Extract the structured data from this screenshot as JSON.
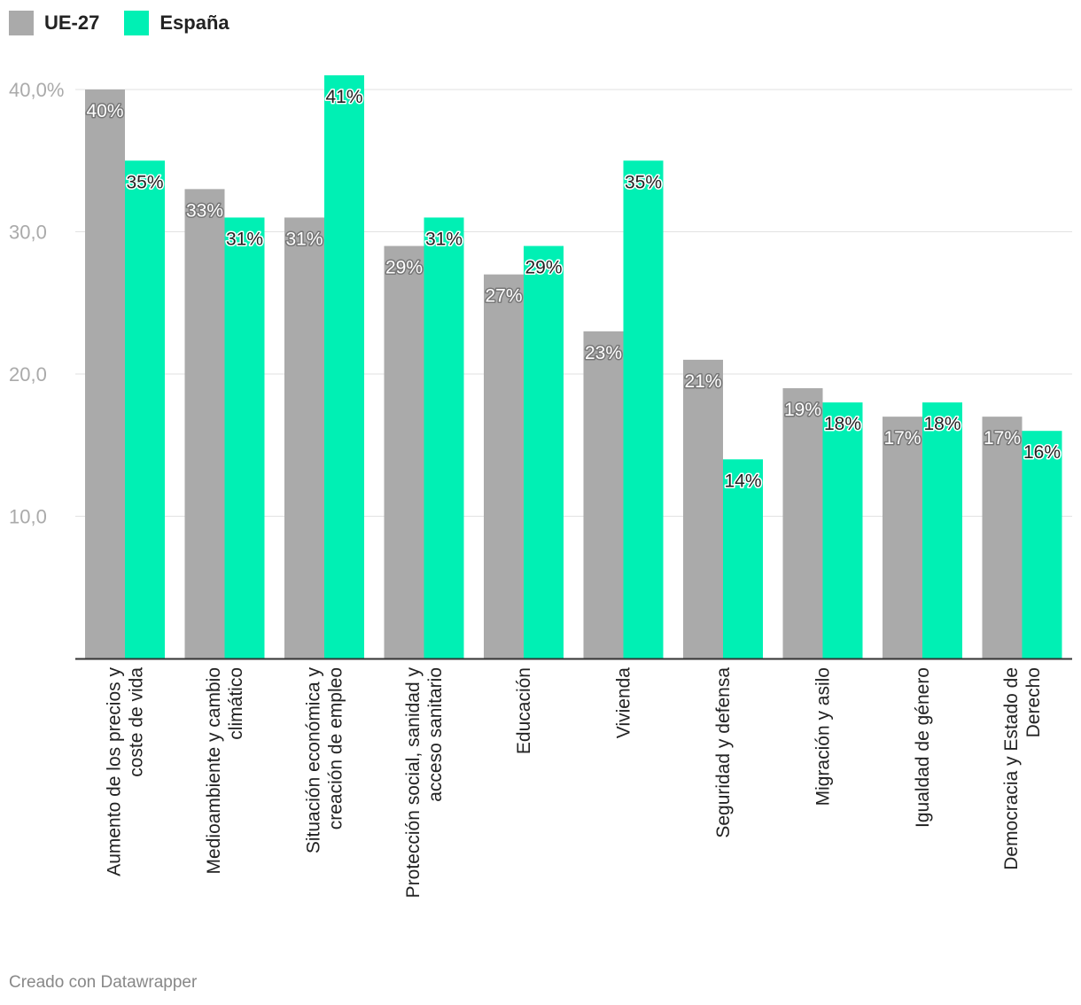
{
  "legend": [
    {
      "label": "UE-27",
      "color": "#aaaaaa"
    },
    {
      "label": "España",
      "color": "#00f0b4"
    }
  ],
  "chart_data": {
    "type": "bar",
    "title": "",
    "xlabel": "",
    "ylabel": "",
    "ylim": [
      0,
      40
    ],
    "yticks": [
      {
        "value": 10,
        "label": "10,0"
      },
      {
        "value": 20,
        "label": "20,0"
      },
      {
        "value": 30,
        "label": "30,0"
      },
      {
        "value": 40,
        "label": "40,0%"
      }
    ],
    "categories": [
      [
        "Aumento de los precios y",
        "coste de vida"
      ],
      [
        "Medioambiente y cambio",
        "climático"
      ],
      [
        "Situación económica y",
        "creación de empleo"
      ],
      [
        "Protección social, sanidad y",
        "acceso sanitario"
      ],
      [
        "Educación"
      ],
      [
        "Vivienda"
      ],
      [
        "Seguridad y defensa"
      ],
      [
        "Migración y asilo"
      ],
      [
        "Igualdad de género"
      ],
      [
        "Democracia y Estado de",
        "Derecho"
      ]
    ],
    "series": [
      {
        "name": "UE-27",
        "color": "#aaaaaa",
        "label_color": "#ffffff",
        "label_stroke": "#777777",
        "values": [
          40,
          33,
          31,
          29,
          27,
          23,
          21,
          19,
          17,
          17
        ],
        "labels": [
          "40%",
          "33%",
          "31%",
          "29%",
          "27%",
          "23%",
          "21%",
          "19%",
          "17%",
          "17%"
        ]
      },
      {
        "name": "España",
        "color": "#00f0b4",
        "label_color": "#222222",
        "label_stroke": "#ffffff",
        "values": [
          35,
          31,
          41,
          31,
          29,
          35,
          14,
          18,
          18,
          16
        ],
        "labels": [
          "35%",
          "31%",
          "41%",
          "31%",
          "29%",
          "35%",
          "14%",
          "18%",
          "18%",
          "16%"
        ]
      }
    ]
  },
  "credit": "Creado con Datawrapper"
}
